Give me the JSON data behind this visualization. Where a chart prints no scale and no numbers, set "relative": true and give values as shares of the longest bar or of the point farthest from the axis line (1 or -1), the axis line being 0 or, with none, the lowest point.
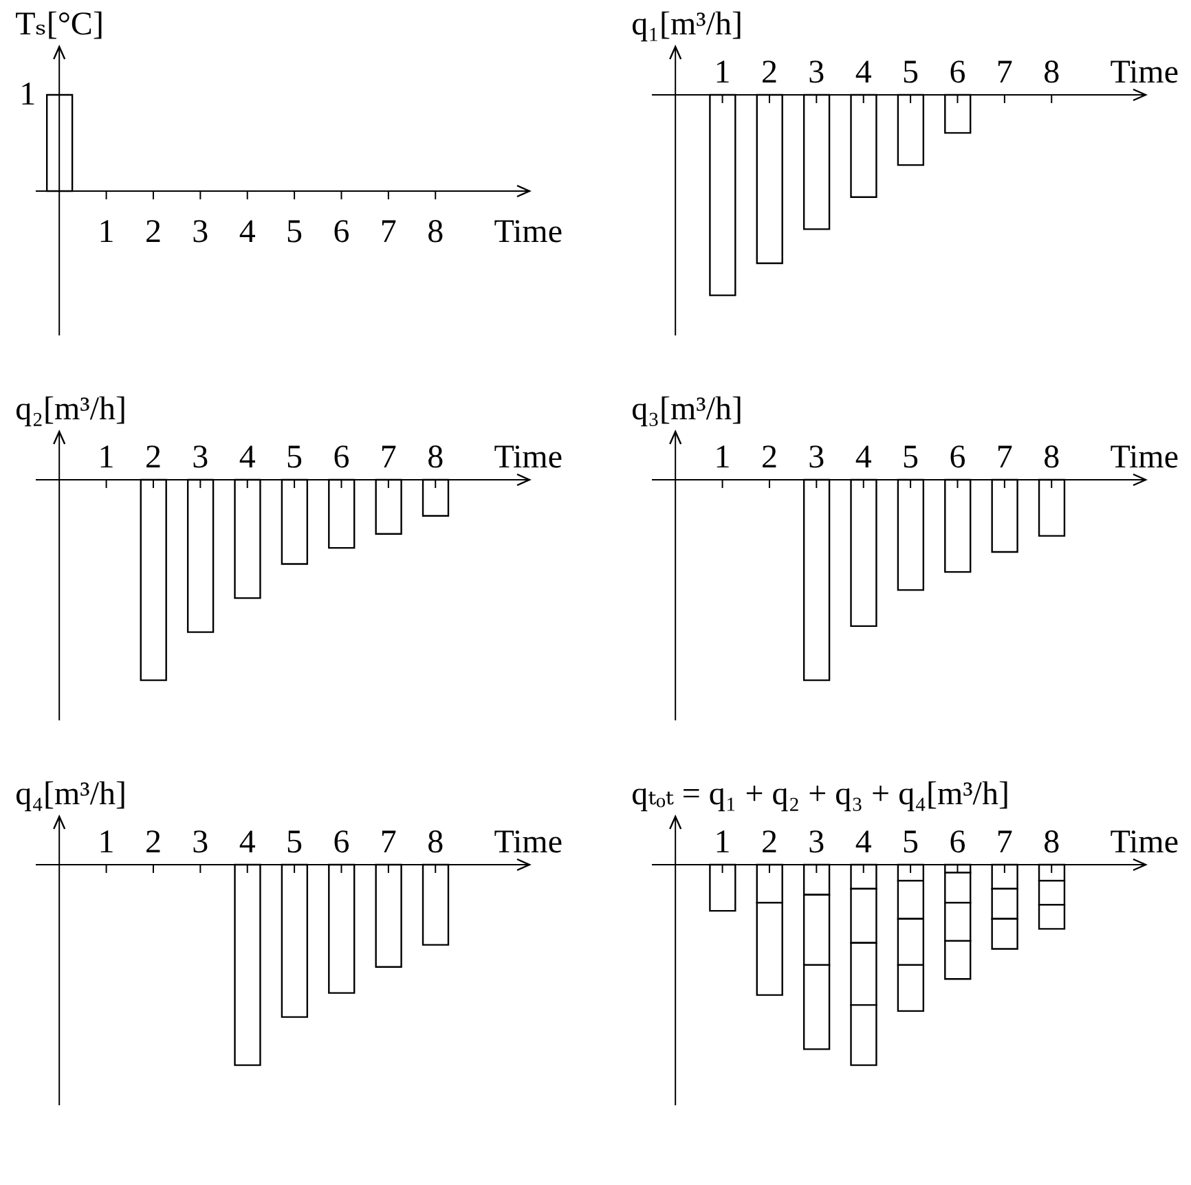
{
  "chart_data": [
    {
      "type": "bar",
      "ylabel": "Tₛ[°C]",
      "xlabel": "Time",
      "x": [
        0
      ],
      "values": [
        1
      ],
      "color": "#ffffff",
      "data_labels": true,
      "xlim": [
        -0.5,
        10
      ],
      "xticks": [
        1,
        2,
        3,
        4,
        5,
        6,
        7,
        8
      ],
      "ylim": [
        -1.5,
        1.5
      ]
    },
    {
      "type": "bar",
      "ylabel": "q₁[m³/h]",
      "xlabel": "Time",
      "relative": true,
      "x": [
        1,
        2,
        3,
        4,
        5,
        6
      ],
      "values": [
        -1,
        -0.84,
        -0.67,
        -0.51,
        -0.35,
        -0.19
      ],
      "color": "#ffffff",
      "xlim": [
        -0.5,
        10
      ],
      "xticks": [
        1,
        2,
        3,
        4,
        5,
        6,
        7,
        8
      ]
    },
    {
      "type": "bar",
      "ylabel": "q₂[m³/h]",
      "xlabel": "Time",
      "relative": true,
      "x": [
        2,
        3,
        4,
        5,
        6,
        7,
        8
      ],
      "values": [
        -1,
        -0.76,
        -0.59,
        -0.42,
        -0.34,
        -0.27,
        -0.18
      ],
      "color": "#ffffff",
      "xlim": [
        -0.5,
        10
      ],
      "xticks": [
        1,
        2,
        3,
        4,
        5,
        6,
        7,
        8
      ]
    },
    {
      "type": "bar",
      "ylabel": "q₃[m³/h]",
      "xlabel": "Time",
      "relative": true,
      "x": [
        3,
        4,
        5,
        6,
        7,
        8
      ],
      "values": [
        -1,
        -0.73,
        -0.55,
        -0.46,
        -0.36,
        -0.28
      ],
      "color": "#ffffff",
      "xlim": [
        -0.5,
        10
      ],
      "xticks": [
        1,
        2,
        3,
        4,
        5,
        6,
        7,
        8
      ]
    },
    {
      "type": "bar",
      "ylabel": "q₄[m³/h]",
      "xlabel": "Time",
      "relative": true,
      "x": [
        4,
        5,
        6,
        7,
        8
      ],
      "values": [
        -1,
        -0.76,
        -0.64,
        -0.51,
        -0.4
      ],
      "color": "#ffffff",
      "xlim": [
        -0.5,
        10
      ],
      "xticks": [
        1,
        2,
        3,
        4,
        5,
        6,
        7,
        8
      ]
    },
    {
      "type": "bar",
      "ylabel": "qₜₒₜ = q₁ + q₂ + q₃ + q₄[m³/h]",
      "xlabel": "Time",
      "relative": true,
      "stacked": true,
      "x": [
        1,
        2,
        3,
        4,
        5,
        6,
        7,
        8
      ],
      "xlim": [
        -0.5,
        10
      ],
      "xticks": [
        1,
        2,
        3,
        4,
        5,
        6,
        7,
        8
      ],
      "series": [
        {
          "color": "#ffffff",
          "values": [
            -0.23,
            -0.19,
            -0.15,
            -0.12,
            -0.08,
            -0.04,
            null,
            null
          ]
        },
        {
          "color": "#ffffff",
          "values": [
            null,
            -0.46,
            -0.35,
            -0.27,
            -0.19,
            -0.15,
            -0.12,
            -0.08
          ]
        },
        {
          "color": "#ffffff",
          "values": [
            null,
            null,
            -0.42,
            -0.31,
            -0.23,
            -0.19,
            -0.15,
            -0.12
          ]
        },
        {
          "color": "#ffffff",
          "values": [
            null,
            null,
            null,
            -0.3,
            -0.23,
            -0.19,
            -0.15,
            -0.12
          ]
        }
      ]
    }
  ]
}
